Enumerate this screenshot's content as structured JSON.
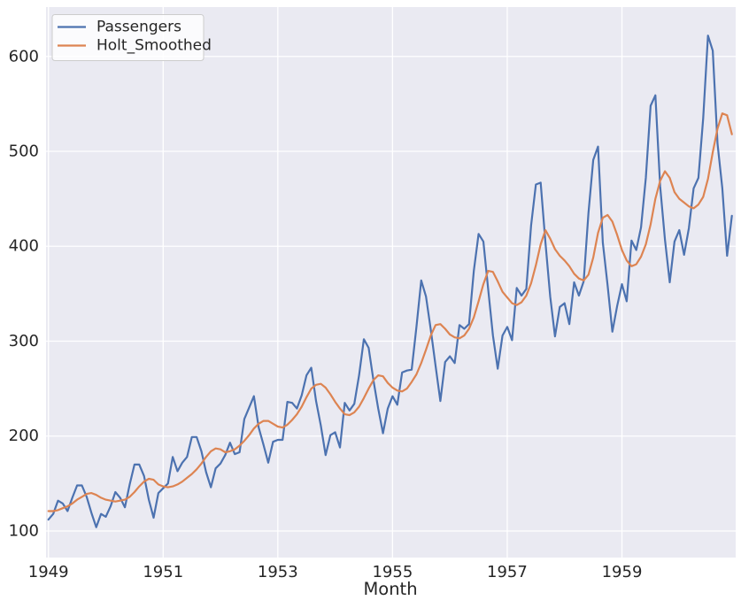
{
  "figure": {
    "background": "#ffffff",
    "plot_background": "#eaeaf2",
    "grid_color": "#ffffff",
    "text_color": "#262626"
  },
  "legend": {
    "position": "upper left",
    "items": [
      {
        "label": "Passengers",
        "color": "#4C72B0"
      },
      {
        "label": "Holt_Smoothed",
        "color": "#DD8452"
      }
    ]
  },
  "chart_data": {
    "type": "line",
    "title": "",
    "xlabel": "Month",
    "ylabel": "",
    "grid": true,
    "legend_position": "upper left",
    "x_start": "1949-01",
    "x_end": "1960-12",
    "x_frequency": "monthly",
    "x_tick_labels": [
      "1949",
      "1951",
      "1953",
      "1955",
      "1957",
      "1959"
    ],
    "x_tick_month_indices": [
      0,
      24,
      48,
      72,
      96,
      120
    ],
    "y_ticks": [
      100,
      200,
      300,
      400,
      500,
      600
    ],
    "ylim": [
      72,
      652
    ],
    "xlim_month_indices": [
      -0.5,
      143.8
    ],
    "series": [
      {
        "name": "Passengers",
        "color": "#4C72B0",
        "values": [
          112,
          118,
          132,
          129,
          121,
          135,
          148,
          148,
          136,
          119,
          104,
          118,
          115,
          126,
          141,
          135,
          125,
          149,
          170,
          170,
          158,
          133,
          114,
          140,
          145,
          150,
          178,
          163,
          172,
          178,
          199,
          199,
          184,
          162,
          146,
          166,
          171,
          180,
          193,
          181,
          183,
          218,
          230,
          242,
          209,
          191,
          172,
          194,
          196,
          196,
          236,
          235,
          229,
          243,
          264,
          272,
          237,
          211,
          180,
          201,
          204,
          188,
          235,
          227,
          234,
          264,
          302,
          293,
          259,
          229,
          203,
          229,
          242,
          233,
          267,
          269,
          270,
          315,
          364,
          347,
          312,
          274,
          237,
          278,
          284,
          277,
          317,
          313,
          318,
          374,
          413,
          405,
          355,
          306,
          271,
          306,
          315,
          301,
          356,
          348,
          355,
          422,
          465,
          467,
          404,
          347,
          305,
          336,
          340,
          318,
          362,
          348,
          363,
          435,
          491,
          505,
          404,
          359,
          310,
          337,
          360,
          342,
          406,
          396,
          420,
          472,
          548,
          559,
          463,
          407,
          362,
          405,
          417,
          391,
          419,
          461,
          472,
          535,
          622,
          606,
          508,
          461,
          390,
          432
        ]
      },
      {
        "name": "Holt_Smoothed",
        "color": "#DD8452",
        "values": [
          121,
          121,
          122,
          124,
          126,
          129,
          133,
          136,
          139,
          140,
          138,
          135,
          133,
          132,
          131,
          132,
          133,
          136,
          141,
          147,
          152,
          155,
          154,
          149,
          147,
          146,
          147,
          149,
          152,
          156,
          160,
          165,
          171,
          178,
          184,
          187,
          186,
          183,
          184,
          186,
          190,
          195,
          201,
          208,
          213,
          216,
          216,
          213,
          210,
          209,
          212,
          217,
          223,
          231,
          241,
          250,
          254,
          255,
          251,
          244,
          236,
          229,
          223,
          222,
          225,
          231,
          240,
          250,
          259,
          264,
          263,
          256,
          251,
          248,
          247,
          250,
          257,
          265,
          277,
          291,
          306,
          317,
          318,
          313,
          307,
          304,
          303,
          306,
          313,
          325,
          342,
          360,
          374,
          373,
          363,
          352,
          346,
          340,
          338,
          341,
          348,
          361,
          380,
          402,
          417,
          408,
          397,
          390,
          385,
          379,
          371,
          366,
          364,
          370,
          388,
          414,
          430,
          433,
          426,
          412,
          396,
          385,
          379,
          381,
          389,
          402,
          423,
          450,
          469,
          479,
          472,
          457,
          450,
          446,
          442,
          440,
          444,
          452,
          471,
          499,
          524,
          540,
          538,
          518
        ]
      }
    ]
  }
}
